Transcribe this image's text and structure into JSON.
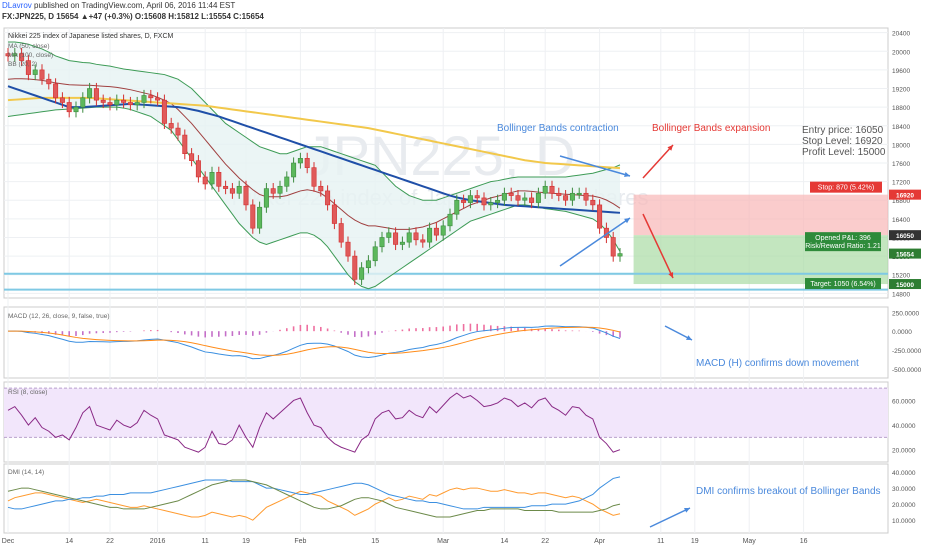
{
  "header": {
    "author": "DLavrov",
    "published": "published on TradingView.com, April 06, 2016 11:44 EST",
    "ticker_line": "FX:JPN225, D  15654 ▲+47 (+0.3%) O:15608 H:15812 L:15554 C:15654"
  },
  "main": {
    "title": "Nikkei 225 index of Japanese listed shares, D, FXCM",
    "indicators": [
      "MA (50, close)",
      "MA (100, close)",
      "BB (20, 2)"
    ],
    "watermark_big": "JPN225, D",
    "watermark_small": "Nikkei 225 index of Japanese listed shares",
    "annot_contraction": "Bollinger Bands contraction",
    "annot_expansion": "Bollinger Bands expansion",
    "entry_price": "Entry price: 16050",
    "stop_level": "Stop Level: 16920",
    "profit_level": "Profit Level: 15000",
    "stop_label": "Stop: 870 (5.42%)",
    "pl_label": "Opened P&L: 396",
    "rr_label": "Risk/Reward Ratio: 1.21",
    "target_label": "Target: 1050 (6.54%)",
    "y_ticks": [
      "20400",
      "20000",
      "19600",
      "19200",
      "18800",
      "18400",
      "18000",
      "17600",
      "17200",
      "16800",
      "16400",
      "16000",
      "15600",
      "15200",
      "14800"
    ],
    "price_tags": [
      "16920",
      "16050",
      "15654",
      "15000"
    ]
  },
  "macd": {
    "title": "MACD (12, 26, close, 9, false, true)",
    "annot": "MACD (H) confirms down movement",
    "y_ticks": [
      "250.0000",
      "0.0000",
      "-250.0000",
      "-500.0000"
    ]
  },
  "rsi": {
    "title": "RSI (8, close)",
    "y_ticks": [
      "60.0000",
      "40.0000",
      "20.0000"
    ]
  },
  "dmi": {
    "title": "DMI (14, 14)",
    "annot": "DMI confirms breakout of Bollinger Bands",
    "y_ticks": [
      "40.0000",
      "30.0000",
      "20.0000",
      "10.0000"
    ]
  },
  "x_ticks": [
    "Dec",
    "14",
    "22",
    "2016",
    "11",
    "19",
    "Feb",
    "15",
    "Mar",
    "14",
    "22",
    "Apr",
    "11",
    "19",
    "May",
    "16"
  ],
  "colors": {
    "up": "#3d8c40",
    "down": "#d32f2f",
    "bb": "#3d9b56",
    "ma50": "#1f4fa8",
    "ma100": "#f2c84b",
    "basis": "#a04040",
    "stop_zone": "#f8b7b7",
    "target_zone": "#a9dca4",
    "annot_blue": "#4a89dc",
    "annot_red": "#e53935"
  },
  "chart_data": {
    "type": "candlestick",
    "dates": [
      "2015-12-01",
      "2015-12-02",
      "2015-12-03",
      "2015-12-04",
      "2015-12-07",
      "2015-12-08",
      "2015-12-09",
      "2015-12-10",
      "2015-12-11",
      "2015-12-14",
      "2015-12-15",
      "2015-12-16",
      "2015-12-17",
      "2015-12-18",
      "2015-12-21",
      "2015-12-22",
      "2015-12-23",
      "2015-12-24",
      "2015-12-25",
      "2015-12-28",
      "2015-12-29",
      "2015-12-30",
      "2015-12-31",
      "2016-01-04",
      "2016-01-05",
      "2016-01-06",
      "2016-01-07",
      "2016-01-08",
      "2016-01-11",
      "2016-01-12",
      "2016-01-13",
      "2016-01-14",
      "2016-01-15",
      "2016-01-18",
      "2016-01-19",
      "2016-01-20",
      "2016-01-21",
      "2016-01-22",
      "2016-01-25",
      "2016-01-26",
      "2016-01-27",
      "2016-01-28",
      "2016-01-29",
      "2016-02-01",
      "2016-02-02",
      "2016-02-03",
      "2016-02-04",
      "2016-02-05",
      "2016-02-08",
      "2016-02-09",
      "2016-02-10",
      "2016-02-11",
      "2016-02-12",
      "2016-02-15",
      "2016-02-16",
      "2016-02-17",
      "2016-02-18",
      "2016-02-19",
      "2016-02-22",
      "2016-02-23",
      "2016-02-24",
      "2016-02-25",
      "2016-02-26",
      "2016-02-29",
      "2016-03-01",
      "2016-03-02",
      "2016-03-03",
      "2016-03-04",
      "2016-03-07",
      "2016-03-08",
      "2016-03-09",
      "2016-03-10",
      "2016-03-11",
      "2016-03-14",
      "2016-03-15",
      "2016-03-16",
      "2016-03-17",
      "2016-03-18",
      "2016-03-21",
      "2016-03-22",
      "2016-03-23",
      "2016-03-24",
      "2016-03-25",
      "2016-03-28",
      "2016-03-29",
      "2016-03-30",
      "2016-03-31",
      "2016-04-01",
      "2016-04-04",
      "2016-04-05",
      "2016-04-06"
    ],
    "close": [
      19900,
      19950,
      19800,
      19500,
      19600,
      19400,
      19300,
      19000,
      18900,
      18700,
      18800,
      19000,
      19200,
      18950,
      18900,
      18850,
      18950,
      18900,
      18850,
      18900,
      19050,
      19000,
      18950,
      18450,
      18350,
      18200,
      17800,
      17650,
      17300,
      17150,
      17400,
      17100,
      17050,
      16950,
      17100,
      16700,
      16200,
      16650,
      17050,
      16950,
      17100,
      17300,
      17600,
      17700,
      17500,
      17100,
      17000,
      16700,
      16300,
      15900,
      15600,
      15100,
      15350,
      15500,
      15800,
      16000,
      16100,
      15850,
      15900,
      16100,
      15950,
      15900,
      16200,
      16050,
      16250,
      16500,
      16800,
      16750,
      16900,
      16850,
      16700,
      16750,
      16800,
      16950,
      16900,
      16800,
      16850,
      16750,
      16950,
      17100,
      16950,
      16900,
      16800,
      16950,
      16950,
      16800,
      16700,
      16200,
      16000,
      15600,
      15654
    ],
    "bb_upper": [
      20200,
      20200,
      20180,
      20150,
      20100,
      20050,
      19980,
      19900,
      19850,
      19800,
      19780,
      19760,
      19750,
      19720,
      19700,
      19680,
      19650,
      19620,
      19600,
      19580,
      19560,
      19540,
      19520,
      19500,
      19450,
      19400,
      19300,
      19200,
      19050,
      18900,
      18750,
      18600,
      18450,
      18350,
      18250,
      18150,
      18050,
      17950,
      17900,
      17850,
      17800,
      17800,
      17850,
      17900,
      17950,
      17950,
      17950,
      17900,
      17850,
      17800,
      17750,
      17700,
      17650,
      17600,
      17550,
      17400,
      17250,
      17100,
      17000,
      16900,
      16850,
      16800,
      16800,
      16800,
      16850,
      16900,
      16950,
      17000,
      17050,
      17100,
      17150,
      17200,
      17220,
      17250,
      17280,
      17300,
      17300,
      17300,
      17300,
      17300,
      17300,
      17300,
      17300,
      17320,
      17340,
      17360,
      17380,
      17420,
      17460,
      17500,
      17560
    ],
    "bb_lower": [
      18600,
      18620,
      18640,
      18660,
      18680,
      18700,
      18720,
      18740,
      18750,
      18760,
      18770,
      18780,
      18790,
      18800,
      18800,
      18800,
      18800,
      18780,
      18750,
      18700,
      18650,
      18600,
      18500,
      18400,
      18300,
      18100,
      17900,
      17700,
      17500,
      17300,
      17100,
      16900,
      16700,
      16500,
      16300,
      16150,
      16000,
      15900,
      15850,
      15900,
      15950,
      16000,
      16050,
      16100,
      16100,
      16050,
      15950,
      15800,
      15600,
      15400,
      15200,
      15050,
      14950,
      14900,
      14950,
      15050,
      15150,
      15250,
      15350,
      15450,
      15550,
      15650,
      15750,
      15850,
      15950,
      16050,
      16150,
      16250,
      16350,
      16400,
      16450,
      16500,
      16550,
      16600,
      16650,
      16700,
      16700,
      16680,
      16650,
      16620,
      16600,
      16580,
      16560,
      16520,
      16480,
      16440,
      16400,
      16300,
      16150,
      15950,
      15700
    ],
    "ma50": [
      19250,
      19200,
      19150,
      19100,
      19050,
      19000,
      18950,
      18900,
      18850,
      18800,
      18800,
      18800,
      18810,
      18820,
      18830,
      18840,
      18850,
      18860,
      18870,
      18860,
      18850,
      18840,
      18830,
      18820,
      18810,
      18800,
      18780,
      18750,
      18720,
      18680,
      18640,
      18600,
      18550,
      18500,
      18450,
      18400,
      18350,
      18300,
      18250,
      18200,
      18150,
      18100,
      18050,
      18000,
      17950,
      17900,
      17850,
      17800,
      17750,
      17700,
      17650,
      17600,
      17550,
      17500,
      17450,
      17400,
      17350,
      17300,
      17250,
      17200,
      17150,
      17100,
      17050,
      17000,
      16950,
      16900,
      16860,
      16830,
      16800,
      16780,
      16760,
      16740,
      16720,
      16700,
      16690,
      16680,
      16670,
      16660,
      16650,
      16640,
      16630,
      16620,
      16610,
      16600,
      16590,
      16580,
      16570,
      16560,
      16550,
      16540,
      16530
    ],
    "ma100": [
      18950,
      18960,
      18970,
      18980,
      18990,
      19000,
      19000,
      19000,
      19000,
      19000,
      19000,
      19000,
      19000,
      18990,
      18980,
      18970,
      18960,
      18950,
      18940,
      18930,
      18920,
      18910,
      18900,
      18890,
      18880,
      18870,
      18860,
      18850,
      18840,
      18830,
      18810,
      18790,
      18770,
      18750,
      18730,
      18710,
      18690,
      18670,
      18650,
      18630,
      18610,
      18590,
      18570,
      18550,
      18530,
      18510,
      18490,
      18470,
      18450,
      18430,
      18410,
      18390,
      18370,
      18350,
      18320,
      18290,
      18260,
      18230,
      18200,
      18170,
      18140,
      18110,
      18080,
      18050,
      18020,
      17990,
      17960,
      17930,
      17900,
      17870,
      17840,
      17810,
      17780,
      17750,
      17720,
      17690,
      17660,
      17640,
      17620,
      17600,
      17590,
      17580,
      17570,
      17560,
      17550,
      17540,
      17530,
      17520,
      17510,
      17500,
      17490
    ],
    "entry": 16050,
    "stop": 16920,
    "target": 15000,
    "last": 15654,
    "ylim": [
      14700,
      20500
    ],
    "macd_ylim": [
      -620,
      320
    ],
    "rsi_ylim": [
      10,
      75
    ],
    "rsi": [
      52,
      55,
      48,
      40,
      46,
      38,
      35,
      30,
      32,
      28,
      38,
      50,
      55,
      40,
      38,
      36,
      44,
      40,
      38,
      42,
      52,
      48,
      45,
      32,
      30,
      28,
      22,
      20,
      18,
      22,
      35,
      25,
      24,
      28,
      40,
      30,
      22,
      38,
      50,
      45,
      50,
      55,
      60,
      62,
      50,
      40,
      38,
      30,
      25,
      22,
      20,
      18,
      28,
      32,
      45,
      50,
      52,
      45,
      46,
      52,
      48,
      46,
      55,
      50,
      56,
      62,
      66,
      62,
      64,
      60,
      55,
      56,
      58,
      62,
      60,
      55,
      58,
      54,
      60,
      62,
      55,
      52,
      48,
      55,
      54,
      48,
      45,
      30,
      25,
      18,
      20
    ],
    "dmi_ylim": [
      2,
      45
    ],
    "dmi_plus": [
      22,
      24,
      25,
      26,
      27,
      27,
      26,
      25,
      24,
      23,
      22,
      21,
      22,
      23,
      22,
      21,
      20,
      19,
      18,
      18,
      19,
      18,
      17,
      16,
      15,
      14,
      13,
      12,
      12,
      13,
      15,
      14,
      13,
      12,
      13,
      12,
      10,
      14,
      18,
      20,
      22,
      24,
      26,
      28,
      27,
      26,
      25,
      22,
      20,
      18,
      16,
      13,
      15,
      17,
      20,
      22,
      24,
      22,
      23,
      25,
      24,
      23,
      26,
      25,
      27,
      29,
      30,
      29,
      30,
      30,
      29,
      28,
      28,
      29,
      28,
      27,
      27,
      26,
      27,
      27,
      26,
      25,
      24,
      25,
      24,
      22,
      20,
      17,
      15,
      13,
      14
    ],
    "dmi_minus": [
      18,
      17,
      17,
      18,
      19,
      20,
      21,
      22,
      22,
      23,
      23,
      24,
      24,
      25,
      25,
      26,
      26,
      26,
      27,
      27,
      27,
      27,
      28,
      29,
      30,
      31,
      32,
      33,
      34,
      35,
      35,
      35,
      35,
      34,
      34,
      34,
      34,
      32,
      30,
      30,
      29,
      28,
      27,
      26,
      26,
      27,
      28,
      29,
      30,
      31,
      32,
      33,
      33,
      32,
      30,
      28,
      26,
      25,
      24,
      23,
      22,
      22,
      21,
      21,
      20,
      19,
      18,
      17,
      17,
      17,
      18,
      18,
      18,
      18,
      18,
      18,
      18,
      19,
      19,
      19,
      20,
      20,
      20,
      21,
      22,
      24,
      26,
      30,
      33,
      36,
      37
    ],
    "adx": [
      28,
      29,
      30,
      30,
      29,
      28,
      27,
      26,
      25,
      24,
      23,
      22,
      21,
      20,
      19,
      18,
      18,
      17,
      17,
      17,
      17,
      18,
      19,
      20,
      21,
      22,
      24,
      26,
      28,
      30,
      32,
      33,
      34,
      35,
      35,
      35,
      34,
      33,
      32,
      30,
      28,
      26,
      24,
      22,
      20,
      18,
      17,
      17,
      18,
      19,
      21,
      23,
      24,
      24,
      23,
      22,
      20,
      18,
      17,
      16,
      15,
      14,
      13,
      12,
      12,
      12,
      13,
      14,
      15,
      16,
      16,
      17,
      17,
      17,
      17,
      17,
      16,
      16,
      16,
      16,
      16,
      15,
      15,
      15,
      15,
      15,
      15,
      16,
      17,
      19,
      20
    ]
  }
}
